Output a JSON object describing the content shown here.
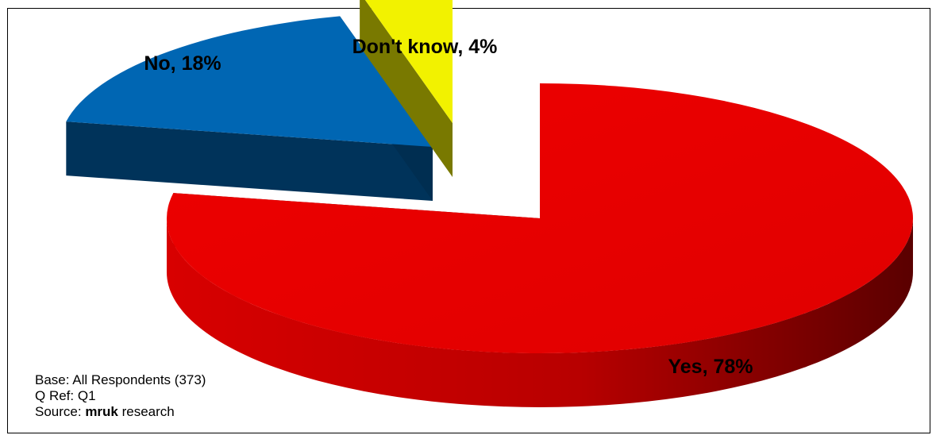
{
  "chart_data": {
    "type": "pie",
    "title": "",
    "categories": [
      "Yes",
      "No",
      "Don't know"
    ],
    "values": [
      78,
      18,
      4
    ],
    "labels": [
      "Yes, 78%",
      "No, 18%",
      "Don't know, 4%"
    ],
    "colors": [
      "#e60000",
      "#0066b3",
      "#f2f200"
    ],
    "three_d": true,
    "legend": "none"
  },
  "footnote": {
    "base": "Base: All Respondents (373)",
    "qref": "Q Ref: Q1",
    "source_prefix": "Source: ",
    "source_brand": "mruk",
    "source_suffix": " research"
  }
}
